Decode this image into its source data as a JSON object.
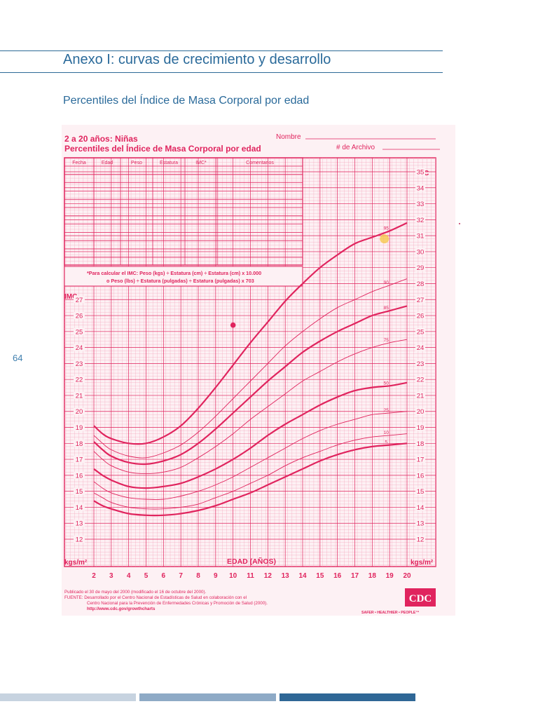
{
  "page": {
    "section_title": "Anexo I: curvas de crecimiento y desarrollo",
    "subsection_title": "Percentiles del Índice de Masa Corporal por edad",
    "page_number": "64"
  },
  "chart_header": {
    "title_line1": "2 a 20 años: Niñas",
    "title_line2": "Percentiles del Índice de Masa Corporal por edad",
    "nombre_label": "Nombre",
    "archivo_label": "# de Archivo"
  },
  "record_table": {
    "headers": [
      "Fecha",
      "Edad",
      "Peso",
      "Estatura",
      "IMC*",
      "Comentarios"
    ]
  },
  "formula_note": {
    "line1": "*Para calcular el IMC: Peso (kgs) ÷ Estatura (cm) ÷ Estatura (cm) x 10.000",
    "line2": "o Peso (lbs) ÷ Estatura (pulgadas) ÷ Estatura (pulgadas) x 703"
  },
  "footer": {
    "line1": "Publicado el 30 de mayo del 2000 (modificado el 16 de octubre del 2000).",
    "line2": "FUENTE: Desarrollado por el Centro Nacional de Estadísticas de Salud en colaboración con el",
    "line3": "Centro Nacional para la Prevención de Enfermedades Crónicas y Promoción de Salud (2000).",
    "line4": "http://www.cdc.gov/growthcharts",
    "logo_text": "CDC",
    "logo_tagline": "SAFER • HEALTHIER • PEOPLE™"
  },
  "colors": {
    "accent_blue": "#2a6a9a",
    "chart_pink": "#e0245e",
    "grid_pink": "#f3a3bb",
    "chart_bg": "#fdf1f4",
    "highlight": "#f5c542"
  },
  "chart_data": {
    "type": "line",
    "x_label": "EDAD (AÑOS)",
    "y_label_top": "IMC",
    "y_unit": "kgs/m²",
    "xlim": [
      2,
      20
    ],
    "ylim": [
      12,
      35
    ],
    "x_ticks": [
      2,
      3,
      4,
      5,
      6,
      7,
      8,
      9,
      10,
      11,
      12,
      13,
      14,
      15,
      16,
      17,
      18,
      19,
      20
    ],
    "y_ticks_right": [
      12,
      13,
      14,
      15,
      16,
      17,
      18,
      19,
      20,
      21,
      22,
      23,
      24,
      25,
      26,
      27,
      28,
      29,
      30,
      31,
      32,
      33,
      34,
      35
    ],
    "y_ticks_left": [
      12,
      13,
      14,
      15,
      16,
      17,
      18,
      19,
      20,
      21,
      22,
      23,
      24,
      25,
      26,
      27
    ],
    "x": [
      2,
      2.5,
      3,
      4,
      5,
      6,
      7,
      8,
      9,
      10,
      11,
      12,
      13,
      14,
      15,
      16,
      17,
      18,
      19,
      20
    ],
    "series": [
      {
        "name": "95",
        "weight": "heavy",
        "values": [
          19.1,
          18.6,
          18.3,
          18.0,
          18.0,
          18.4,
          19.1,
          20.2,
          21.5,
          22.9,
          24.3,
          25.6,
          26.9,
          28.0,
          29.0,
          29.8,
          30.5,
          30.9,
          31.3,
          31.8
        ]
      },
      {
        "name": "90",
        "weight": "thin",
        "values": [
          18.5,
          18.0,
          17.6,
          17.2,
          17.1,
          17.4,
          17.9,
          18.7,
          19.7,
          20.8,
          21.9,
          23.0,
          24.1,
          25.0,
          25.8,
          26.5,
          27.0,
          27.5,
          27.9,
          28.3
        ]
      },
      {
        "name": "85",
        "weight": "heavy",
        "values": [
          18.1,
          17.6,
          17.2,
          16.8,
          16.7,
          16.9,
          17.3,
          18.0,
          18.9,
          19.9,
          20.9,
          21.9,
          22.8,
          23.7,
          24.4,
          25.0,
          25.5,
          26.0,
          26.3,
          26.6
        ]
      },
      {
        "name": "75",
        "weight": "thin",
        "values": [
          17.5,
          17.0,
          16.6,
          16.2,
          16.1,
          16.2,
          16.5,
          17.1,
          17.8,
          18.6,
          19.5,
          20.3,
          21.1,
          21.9,
          22.5,
          23.1,
          23.6,
          24.0,
          24.3,
          24.5
        ]
      },
      {
        "name": "50",
        "weight": "heavy",
        "values": [
          16.4,
          16.0,
          15.7,
          15.3,
          15.2,
          15.3,
          15.5,
          15.9,
          16.4,
          17.0,
          17.7,
          18.5,
          19.2,
          19.8,
          20.4,
          20.9,
          21.3,
          21.5,
          21.6,
          21.8
        ]
      },
      {
        "name": "25",
        "weight": "thin",
        "values": [
          15.6,
          15.2,
          14.9,
          14.6,
          14.5,
          14.5,
          14.7,
          15.0,
          15.4,
          15.9,
          16.5,
          17.1,
          17.7,
          18.3,
          18.8,
          19.2,
          19.5,
          19.8,
          19.9,
          20.0
        ]
      },
      {
        "name": "10",
        "weight": "thin",
        "values": [
          14.9,
          14.6,
          14.3,
          14.0,
          13.9,
          13.9,
          14.0,
          14.2,
          14.6,
          15.0,
          15.5,
          16.0,
          16.6,
          17.1,
          17.5,
          17.9,
          18.2,
          18.4,
          18.5,
          18.6
        ]
      },
      {
        "name": "5",
        "weight": "heavy",
        "values": [
          14.4,
          14.1,
          13.9,
          13.6,
          13.5,
          13.5,
          13.6,
          13.8,
          14.1,
          14.5,
          14.9,
          15.4,
          15.9,
          16.4,
          16.9,
          17.3,
          17.6,
          17.8,
          17.9,
          18.0
        ]
      }
    ],
    "point_marker": {
      "x": 10,
      "y": 25.4
    },
    "highlight_marker": {
      "x": 18.7,
      "y": 30.8
    }
  }
}
